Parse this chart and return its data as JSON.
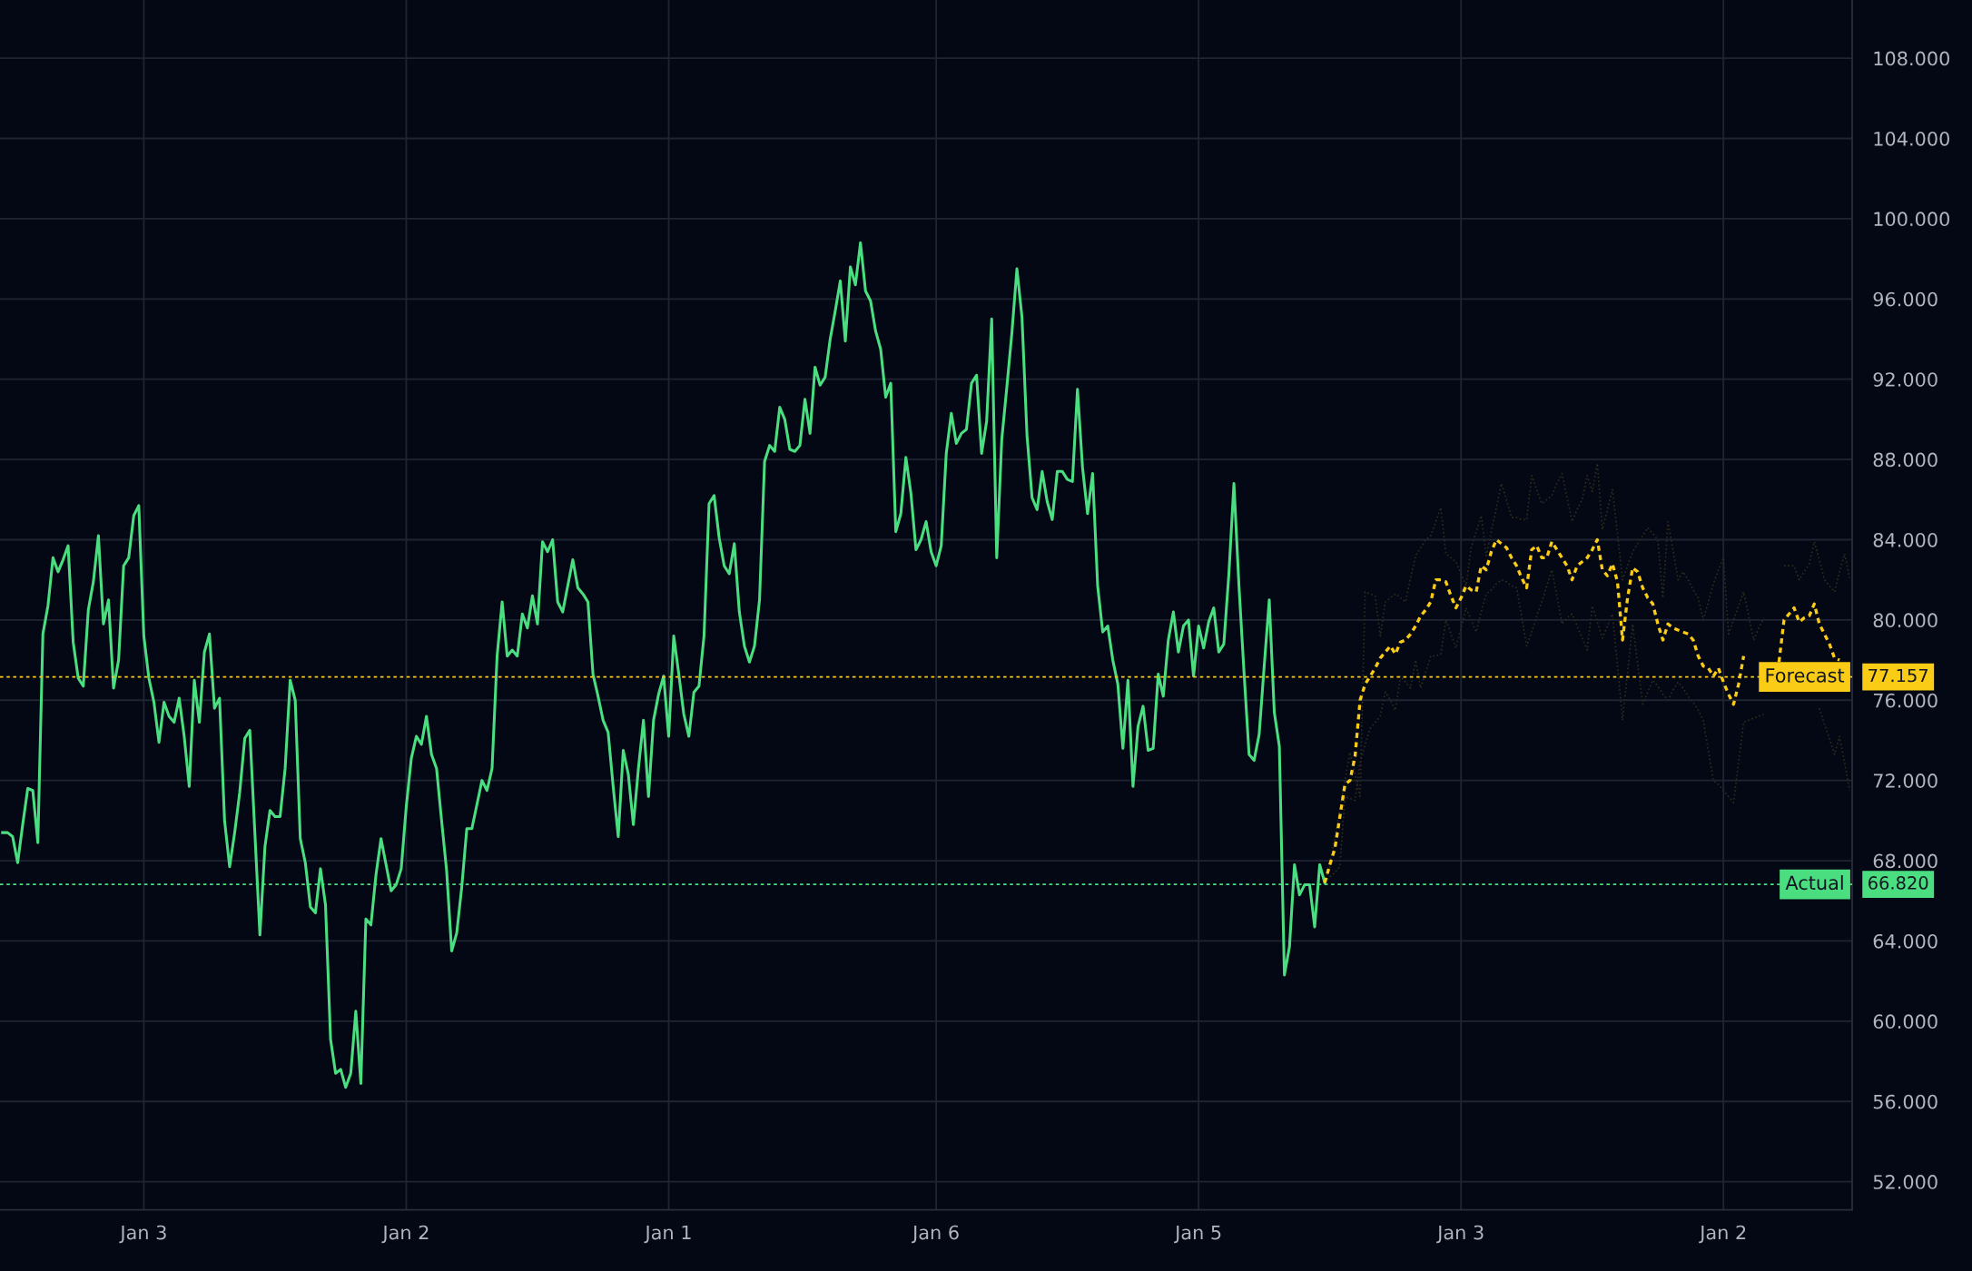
{
  "chart_data": {
    "type": "line",
    "categories": [
      null,
      null,
      null,
      null,
      null,
      null,
      null,
      null,
      null,
      null,
      null,
      null,
      null,
      null,
      null,
      null,
      null,
      null,
      null,
      null,
      null,
      null,
      null,
      null,
      null,
      null,
      null,
      null,
      "Jan 3",
      null,
      null,
      null,
      null,
      null,
      null,
      null,
      null,
      null,
      null,
      null,
      null,
      null,
      null,
      null,
      null,
      null,
      null,
      null,
      null,
      null,
      null,
      null,
      null,
      null,
      null,
      null,
      null,
      null,
      null,
      null,
      null,
      null,
      null,
      null,
      null,
      null,
      null,
      null,
      null,
      null,
      null,
      null,
      null,
      null,
      null,
      null,
      null,
      null,
      null,
      null,
      "Jan 2",
      null,
      null,
      null,
      null,
      null,
      null,
      null,
      null,
      null,
      null,
      null,
      null,
      null,
      null,
      null,
      null,
      null,
      null,
      null,
      null,
      null,
      null,
      null,
      null,
      null,
      null,
      null,
      null,
      null,
      null,
      null,
      null,
      null,
      null,
      null,
      null,
      null,
      null,
      null,
      null,
      null,
      null,
      null,
      null,
      null,
      null,
      null,
      null,
      null,
      null,
      null,
      "Jan 1",
      null,
      null,
      null,
      null,
      null,
      null,
      null,
      null,
      null,
      null,
      null,
      null,
      null,
      null,
      null,
      null,
      null,
      null,
      null,
      null,
      null,
      null,
      null,
      null,
      null,
      null,
      null,
      null,
      null,
      null,
      null,
      null,
      null,
      null,
      null,
      null,
      null,
      null,
      null,
      null,
      null,
      null,
      null,
      null,
      null,
      null,
      null,
      null,
      null,
      null,
      null,
      null,
      "Jan 6",
      null,
      null,
      null,
      null,
      null,
      null,
      null,
      null,
      null,
      null,
      null,
      null,
      null,
      null,
      null,
      null,
      null,
      null,
      null,
      null,
      null,
      null,
      null,
      null,
      null,
      null,
      null,
      null,
      null,
      null,
      null,
      null,
      null,
      null,
      null,
      null,
      null,
      null,
      null,
      null,
      null,
      null,
      null,
      null,
      null,
      null,
      null,
      null,
      null,
      null,
      null,
      "Jan 5",
      null,
      null,
      null,
      null,
      null,
      null,
      null,
      null,
      null,
      null,
      null,
      null,
      null,
      null,
      null,
      null,
      null,
      null,
      null,
      null,
      null,
      null,
      null,
      null,
      null,
      null,
      null,
      null,
      null,
      null,
      null,
      null,
      null,
      null,
      null,
      null,
      null,
      null,
      null,
      null,
      null,
      null,
      null,
      null,
      null,
      null,
      null,
      null,
      null,
      null,
      null,
      "Jan 3",
      null,
      null,
      null,
      null,
      null,
      null,
      null,
      null,
      null,
      null,
      null,
      null,
      null,
      null,
      null,
      null,
      null,
      null,
      null,
      null,
      null,
      null,
      null,
      null,
      null,
      null,
      null,
      null,
      null,
      null,
      null,
      null,
      null,
      null,
      null,
      null,
      null,
      null,
      null,
      null,
      null,
      null,
      null,
      null,
      null,
      null,
      null,
      null,
      null,
      null,
      null,
      "Jan 2",
      null,
      null,
      null,
      null,
      null,
      null,
      null,
      null,
      null,
      null,
      null,
      null,
      null,
      null,
      null,
      null,
      null,
      null,
      null,
      null,
      null,
      null,
      null,
      null,
      null
    ],
    "ylim": [
      50.6,
      110.9
    ],
    "yticks": [
      {
        "value": 52,
        "label": "52.000"
      },
      {
        "value": 56,
        "label": "56.000"
      },
      {
        "value": 60,
        "label": "60.000"
      },
      {
        "value": 64,
        "label": "64.000"
      },
      {
        "value": 68,
        "label": "68.000"
      },
      {
        "value": 72,
        "label": "72.000"
      },
      {
        "value": 76,
        "label": "76.000"
      },
      {
        "value": 80,
        "label": "80.000"
      },
      {
        "value": 84,
        "label": "84.000"
      },
      {
        "value": 88,
        "label": "88.000"
      },
      {
        "value": 92,
        "label": "92.000"
      },
      {
        "value": 96,
        "label": "96.000"
      },
      {
        "value": 100,
        "label": "100.000"
      },
      {
        "value": 104,
        "label": "104.000"
      },
      {
        "value": 108,
        "label": "108.000"
      }
    ],
    "grid": true,
    "series": [
      {
        "color": "#2f2c1e",
        "line_style": "dotted",
        "values": [
          null,
          null,
          null,
          null,
          null,
          null,
          null,
          null,
          null,
          null,
          null,
          null,
          null,
          null,
          null,
          null,
          null,
          null,
          null,
          null,
          null,
          null,
          null,
          null,
          null,
          null,
          null,
          null,
          null,
          null,
          null,
          null,
          null,
          null,
          null,
          null,
          null,
          null,
          null,
          null,
          null,
          null,
          null,
          null,
          null,
          null,
          null,
          null,
          null,
          null,
          null,
          null,
          null,
          null,
          null,
          null,
          null,
          null,
          null,
          null,
          null,
          null,
          null,
          null,
          null,
          null,
          null,
          null,
          null,
          null,
          null,
          null,
          null,
          null,
          null,
          null,
          null,
          null,
          null,
          null,
          null,
          null,
          null,
          null,
          null,
          null,
          null,
          null,
          null,
          null,
          null,
          null,
          null,
          null,
          null,
          null,
          null,
          null,
          null,
          null,
          null,
          null,
          null,
          null,
          null,
          null,
          null,
          null,
          null,
          null,
          null,
          null,
          null,
          null,
          null,
          null,
          null,
          null,
          null,
          null,
          null,
          null,
          null,
          null,
          null,
          null,
          null,
          null,
          null,
          null,
          null,
          null,
          null,
          null,
          null,
          null,
          null,
          null,
          null,
          null,
          null,
          null,
          null,
          null,
          null,
          null,
          null,
          null,
          null,
          null,
          null,
          null,
          null,
          null,
          null,
          null,
          null,
          null,
          null,
          null,
          null,
          null,
          null,
          null,
          null,
          null,
          null,
          null,
          null,
          null,
          null,
          null,
          null,
          null,
          null,
          null,
          null,
          null,
          null,
          null,
          null,
          null,
          null,
          null,
          null,
          null,
          null,
          null,
          null,
          null,
          null,
          null,
          null,
          null,
          null,
          null,
          null,
          null,
          null,
          null,
          null,
          null,
          null,
          null,
          null,
          null,
          null,
          null,
          null,
          null,
          null,
          null,
          null,
          null,
          null,
          null,
          null,
          null,
          null,
          null,
          null,
          null,
          null,
          null,
          null,
          null,
          null,
          null,
          null,
          null,
          null,
          null,
          null,
          null,
          null,
          null,
          null,
          null,
          null,
          null,
          null,
          null,
          null,
          null,
          null,
          null,
          null,
          null,
          null,
          null,
          null,
          null,
          null,
          null,
          null,
          null,
          null,
          null,
          null,
          null,
          null,
          null,
          66.9,
          67.7,
          69.1,
          70.6,
          72.0,
          73.4,
          72.3,
          71.2,
          81.4,
          81.3,
          81.2,
          79.2,
          80.9,
          81.1,
          81.3,
          81.1,
          80.9,
          82.1,
          83.2,
          83.6,
          84.0,
          84.2,
          84.9,
          85.6,
          83.3,
          83.1,
          82.9,
          82.3,
          81.7,
          83.6,
          84.4,
          85.2,
          83.2,
          84.4,
          85.6,
          86.8,
          86.0,
          85.1,
          85.1,
          85.0,
          85.0,
          87.2,
          86.5,
          85.8,
          86.0,
          86.2,
          86.8,
          87.3,
          86.1,
          84.9,
          85.5,
          86.0,
          87.2,
          86.4,
          87.8,
          84.5,
          85.5,
          86.5,
          84.3,
          82.0,
          82.7,
          83.4,
          83.8,
          84.2,
          84.6,
          84.3,
          84.0,
          81.1,
          84.9,
          83.5,
          82.0,
          82.4,
          82.0,
          81.5,
          81.1,
          80.0,
          80.9,
          81.8,
          82.5,
          83.1,
          79.3,
          80.0,
          80.7,
          81.4,
          80.2,
          79.0,
          79.6,
          80.1,
          null,
          null,
          null,
          82.7,
          82.7,
          82.7,
          82.0,
          82.4,
          82.8,
          83.9,
          83.0,
          82.0,
          81.7,
          81.4,
          82.4,
          83.3,
          82.1
        ]
      },
      {
        "color": "#2f2c1e",
        "line_style": "dotted",
        "values": [
          null,
          null,
          null,
          null,
          null,
          null,
          null,
          null,
          null,
          null,
          null,
          null,
          null,
          null,
          null,
          null,
          null,
          null,
          null,
          null,
          null,
          null,
          null,
          null,
          null,
          null,
          null,
          null,
          null,
          null,
          null,
          null,
          null,
          null,
          null,
          null,
          null,
          null,
          null,
          null,
          null,
          null,
          null,
          null,
          null,
          null,
          null,
          null,
          null,
          null,
          null,
          null,
          null,
          null,
          null,
          null,
          null,
          null,
          null,
          null,
          null,
          null,
          null,
          null,
          null,
          null,
          null,
          null,
          null,
          null,
          null,
          null,
          null,
          null,
          null,
          null,
          null,
          null,
          null,
          null,
          null,
          null,
          null,
          null,
          null,
          null,
          null,
          null,
          null,
          null,
          null,
          null,
          null,
          null,
          null,
          null,
          null,
          null,
          null,
          null,
          null,
          null,
          null,
          null,
          null,
          null,
          null,
          null,
          null,
          null,
          null,
          null,
          null,
          null,
          null,
          null,
          null,
          null,
          null,
          null,
          null,
          null,
          null,
          null,
          null,
          null,
          null,
          null,
          null,
          null,
          null,
          null,
          null,
          null,
          null,
          null,
          null,
          null,
          null,
          null,
          null,
          null,
          null,
          null,
          null,
          null,
          null,
          null,
          null,
          null,
          null,
          null,
          null,
          null,
          null,
          null,
          null,
          null,
          null,
          null,
          null,
          null,
          null,
          null,
          null,
          null,
          null,
          null,
          null,
          null,
          null,
          null,
          null,
          null,
          null,
          null,
          null,
          null,
          null,
          null,
          null,
          null,
          null,
          null,
          null,
          null,
          null,
          null,
          null,
          null,
          null,
          null,
          null,
          null,
          null,
          null,
          null,
          null,
          null,
          null,
          null,
          null,
          null,
          null,
          null,
          null,
          null,
          null,
          null,
          null,
          null,
          null,
          null,
          null,
          null,
          null,
          null,
          null,
          null,
          null,
          null,
          null,
          null,
          null,
          null,
          null,
          null,
          null,
          null,
          null,
          null,
          null,
          null,
          null,
          null,
          null,
          null,
          null,
          null,
          null,
          null,
          null,
          null,
          null,
          null,
          null,
          null,
          null,
          null,
          null,
          null,
          null,
          null,
          null,
          null,
          null,
          null,
          null,
          null,
          null,
          null,
          null,
          66.9,
          67.2,
          67.4,
          67.7,
          71.2,
          71.1,
          71.0,
          72.9,
          73.8,
          74.6,
          74.9,
          75.2,
          76.4,
          76.0,
          75.5,
          77.2,
          76.9,
          76.6,
          78.0,
          76.6,
          77.4,
          78.2,
          78.2,
          78.3,
          80.0,
          79.3,
          78.6,
          79.6,
          80.6,
          80.0,
          79.4,
          80.4,
          81.3,
          81.5,
          81.8,
          82.0,
          81.9,
          81.7,
          81.6,
          80.2,
          78.7,
          79.4,
          80.2,
          80.9,
          81.7,
          82.5,
          81.2,
          79.8,
          80.1,
          80.3,
          79.7,
          79.1,
          78.5,
          80.7,
          79.9,
          79.1,
          79.7,
          80.3,
          77.7,
          75.0,
          77.4,
          79.8,
          77.8,
          75.8,
          76.4,
          77.0,
          76.7,
          76.3,
          76.0,
          76.5,
          76.9,
          76.6,
          76.2,
          75.9,
          75.5,
          75.0,
          73.5,
          72.0,
          71.8,
          71.5,
          71.2,
          70.9,
          72.9,
          74.9,
          75.0,
          75.1,
          75.2,
          75.3,
          null,
          null,
          null,
          null,
          null,
          null,
          null,
          null,
          null,
          null,
          75.6,
          74.8,
          74.1,
          73.3,
          74.2,
          72.9,
          71.5
        ]
      },
      {
        "color": "#4ade80",
        "line_style": "solid",
        "values": [
          69.4,
          69.4,
          69.2,
          67.9,
          69.8,
          71.6,
          71.5,
          68.9,
          79.3,
          80.7,
          83.1,
          82.4,
          83.0,
          83.7,
          78.9,
          77.1,
          76.7,
          80.5,
          81.9,
          84.2,
          79.8,
          81.0,
          76.6,
          78.0,
          82.7,
          83.1,
          85.2,
          85.7,
          79.2,
          77.1,
          75.9,
          73.9,
          75.9,
          75.2,
          74.9,
          76.1,
          74.2,
          71.7,
          77.0,
          74.9,
          78.4,
          79.3,
          75.6,
          76.1,
          70.0,
          67.7,
          69.4,
          71.4,
          74.1,
          74.5,
          69.4,
          64.3,
          68.7,
          70.5,
          70.2,
          70.2,
          72.6,
          77.0,
          76.0,
          69.1,
          67.9,
          65.7,
          65.4,
          67.6,
          65.8,
          59.1,
          57.4,
          57.6,
          56.7,
          57.4,
          60.5,
          56.9,
          65.1,
          64.8,
          67.3,
          69.1,
          67.8,
          66.5,
          66.8,
          67.6,
          70.7,
          73.1,
          74.2,
          73.8,
          75.2,
          73.3,
          72.6,
          70.0,
          67.5,
          63.5,
          64.4,
          66.7,
          69.6,
          69.6,
          70.8,
          72.0,
          71.5,
          72.6,
          78.2,
          80.9,
          78.2,
          78.5,
          78.2,
          80.3,
          79.6,
          81.2,
          79.8,
          83.9,
          83.4,
          84.0,
          80.9,
          80.4,
          81.7,
          83.0,
          81.6,
          81.3,
          80.9,
          77.3,
          76.2,
          75.0,
          74.4,
          71.7,
          69.2,
          73.5,
          72.3,
          69.8,
          72.6,
          75.0,
          71.2,
          75.0,
          76.3,
          77.2,
          74.2,
          79.2,
          77.3,
          75.3,
          74.2,
          76.4,
          76.7,
          79.2,
          85.8,
          86.2,
          84.1,
          82.7,
          82.3,
          83.8,
          80.4,
          78.7,
          77.9,
          78.7,
          81.0,
          87.9,
          88.7,
          88.4,
          90.6,
          90.0,
          88.5,
          88.4,
          88.7,
          91.0,
          89.3,
          92.6,
          91.7,
          92.1,
          94.0,
          95.4,
          96.9,
          93.9,
          97.6,
          96.7,
          98.8,
          96.4,
          95.9,
          94.4,
          93.5,
          91.1,
          91.8,
          84.4,
          85.3,
          88.1,
          86.3,
          83.5,
          84.0,
          84.9,
          83.4,
          82.7,
          83.7,
          88.3,
          90.3,
          88.8,
          89.3,
          89.5,
          91.8,
          92.2,
          88.3,
          89.9,
          95.0,
          83.1,
          89.0,
          91.6,
          94.3,
          97.5,
          95.1,
          89.2,
          86.1,
          85.5,
          87.4,
          85.9,
          85.0,
          87.4,
          87.4,
          87.0,
          86.9,
          91.5,
          87.6,
          85.3,
          87.3,
          81.7,
          79.4,
          79.7,
          78.0,
          76.8,
          73.6,
          77.0,
          71.7,
          74.7,
          75.7,
          73.5,
          73.6,
          77.3,
          76.2,
          79.0,
          80.4,
          78.4,
          79.7,
          80.0,
          77.2,
          79.7,
          78.6,
          79.9,
          80.6,
          78.4,
          78.8,
          82.3,
          86.8,
          81.7,
          77.4,
          73.3,
          73.0,
          74.3,
          77.7,
          81.0,
          75.4,
          73.7,
          62.3,
          63.7,
          67.8,
          66.3,
          66.8,
          66.8,
          64.7,
          67.8,
          66.9,
          null,
          null,
          null,
          null,
          null,
          null,
          null,
          null,
          null,
          null,
          null,
          null,
          null,
          null,
          null,
          null,
          null,
          null,
          null,
          null,
          null,
          null,
          null,
          null,
          null,
          null,
          null,
          null,
          null,
          null,
          null,
          null,
          null,
          null,
          null,
          null,
          null,
          null,
          null,
          null,
          null,
          null,
          null,
          null,
          null,
          null,
          null,
          null,
          null,
          null,
          null,
          null,
          null,
          null,
          null,
          null,
          null,
          null,
          null,
          null,
          null,
          null,
          null,
          null,
          null,
          null,
          null,
          null,
          null,
          null,
          null,
          null,
          null,
          null,
          null,
          null,
          null,
          null,
          null,
          null,
          null,
          null,
          null,
          null,
          null,
          null,
          null,
          null,
          null,
          null,
          null,
          null,
          null,
          null,
          null,
          null,
          null,
          null,
          null,
          null,
          null,
          null,
          null,
          null
        ]
      },
      {
        "color": "#facc15",
        "line_style": "dashed",
        "values": [
          null,
          null,
          null,
          null,
          null,
          null,
          null,
          null,
          null,
          null,
          null,
          null,
          null,
          null,
          null,
          null,
          null,
          null,
          null,
          null,
          null,
          null,
          null,
          null,
          null,
          null,
          null,
          null,
          null,
          null,
          null,
          null,
          null,
          null,
          null,
          null,
          null,
          null,
          null,
          null,
          null,
          null,
          null,
          null,
          null,
          null,
          null,
          null,
          null,
          null,
          null,
          null,
          null,
          null,
          null,
          null,
          null,
          null,
          null,
          null,
          null,
          null,
          null,
          null,
          null,
          null,
          null,
          null,
          null,
          null,
          null,
          null,
          null,
          null,
          null,
          null,
          null,
          null,
          null,
          null,
          null,
          null,
          null,
          null,
          null,
          null,
          null,
          null,
          null,
          null,
          null,
          null,
          null,
          null,
          null,
          null,
          null,
          null,
          null,
          null,
          null,
          null,
          null,
          null,
          null,
          null,
          null,
          null,
          null,
          null,
          null,
          null,
          null,
          null,
          null,
          null,
          null,
          null,
          null,
          null,
          null,
          null,
          null,
          null,
          null,
          null,
          null,
          null,
          null,
          null,
          null,
          null,
          null,
          null,
          null,
          null,
          null,
          null,
          null,
          null,
          null,
          null,
          null,
          null,
          null,
          null,
          null,
          null,
          null,
          null,
          null,
          null,
          null,
          null,
          null,
          null,
          null,
          null,
          null,
          null,
          null,
          null,
          null,
          null,
          null,
          null,
          null,
          null,
          null,
          null,
          null,
          null,
          null,
          null,
          null,
          null,
          null,
          null,
          null,
          null,
          null,
          null,
          null,
          null,
          null,
          null,
          null,
          null,
          null,
          null,
          null,
          null,
          null,
          null,
          null,
          null,
          null,
          null,
          null,
          null,
          null,
          null,
          null,
          null,
          null,
          null,
          null,
          null,
          null,
          null,
          null,
          null,
          null,
          null,
          null,
          null,
          null,
          null,
          null,
          null,
          null,
          null,
          null,
          null,
          null,
          null,
          null,
          null,
          null,
          null,
          null,
          null,
          null,
          null,
          null,
          null,
          null,
          null,
          null,
          null,
          null,
          null,
          null,
          null,
          null,
          null,
          null,
          null,
          null,
          null,
          null,
          null,
          null,
          null,
          null,
          null,
          null,
          null,
          null,
          null,
          null,
          null,
          66.9,
          67.8,
          68.6,
          70.2,
          71.8,
          72.0,
          73.2,
          76.0,
          76.8,
          77.2,
          77.6,
          78.1,
          78.4,
          78.7,
          78.3,
          78.9,
          79.0,
          79.3,
          79.7,
          80.2,
          80.5,
          80.9,
          82.0,
          82.0,
          81.9,
          81.2,
          80.6,
          81.1,
          81.7,
          81.5,
          81.4,
          82.7,
          82.5,
          83.4,
          84.0,
          83.8,
          83.6,
          83.1,
          82.7,
          82.1,
          81.6,
          83.5,
          83.7,
          83.1,
          83.1,
          83.9,
          83.5,
          83.1,
          82.7,
          82.0,
          82.7,
          82.9,
          83.1,
          83.5,
          84.0,
          82.5,
          82.2,
          82.8,
          81.9,
          79.0,
          81.1,
          82.6,
          82.4,
          81.6,
          81.1,
          80.8,
          79.8,
          79.0,
          79.8,
          79.6,
          79.5,
          79.4,
          79.3,
          79.0,
          78.2,
          77.7,
          77.6,
          77.2,
          77.6,
          76.9,
          76.3,
          75.8,
          76.8,
          78.2,
          null,
          null,
          null,
          null,
          null,
          null,
          77.9,
          80.0,
          80.3,
          80.6,
          79.9,
          80.1,
          80.2,
          80.8,
          79.8,
          79.3,
          78.8,
          78.1,
          78.0,
          null,
          null
        ]
      }
    ],
    "ref_lines": [
      {
        "axis": "y",
        "value": 77.157,
        "label": "Forecast",
        "color": "#facc15",
        "line_style": "dotted"
      },
      {
        "axis": "y",
        "value": 66.82,
        "label": "Actual",
        "color": "#4ade80",
        "line_style": "dotted"
      }
    ],
    "annotations": [
      "77.157",
      "66.820"
    ]
  }
}
